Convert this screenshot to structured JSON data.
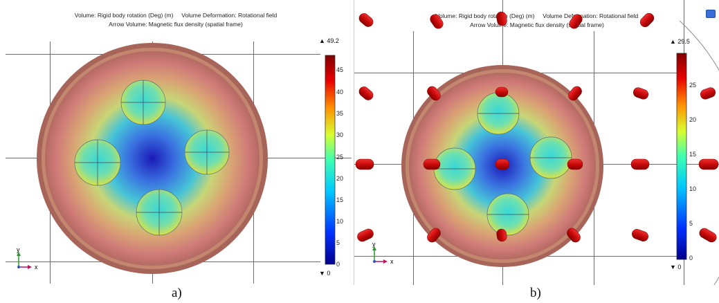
{
  "panel_a": {
    "title_line1": "Volume: Rigid body rotation (Deg) (m)     Volume Deformation: Rotational field",
    "title_line2": "Arrow Volume: Magnetic flux density (spatial frame)",
    "colorbar_max": "▲ 49.2",
    "colorbar_min": "▼ 0",
    "colorbar_ticks": [
      "45",
      "40",
      "35",
      "30",
      "25",
      "20",
      "15",
      "10",
      "5",
      "0"
    ],
    "axis_y": "y",
    "axis_x": "x",
    "caption": "a)"
  },
  "panel_b": {
    "title_line1": "Volume: Rigid body rotation (Deg) (m)     Volume Deformation: Rotational field",
    "title_line2": "Arrow Volume: Magnetic flux density (spatial frame)",
    "colorbar_max": "▲ 29.5",
    "colorbar_min": "▼ 0",
    "colorbar_ticks": [
      "25",
      "20",
      "15",
      "10",
      "5",
      "0"
    ],
    "axis_y": "y",
    "axis_x": "x",
    "caption": "b)"
  },
  "colors": {
    "rim": "#a85a4a",
    "center": "#2030c0",
    "magnet_arrow": "#d21414",
    "grid": "#6b6b6b"
  }
}
